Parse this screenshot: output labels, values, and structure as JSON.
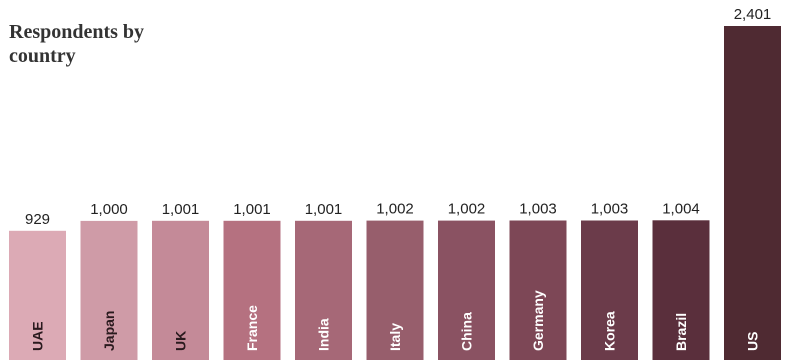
{
  "chart_data": {
    "type": "bar",
    "title": "Respondents by country",
    "categories": [
      "UAE",
      "Japan",
      "UK",
      "France",
      "India",
      "Italy",
      "China",
      "Germany",
      "Korea",
      "Brazil",
      "US"
    ],
    "values": [
      929,
      1000,
      1001,
      1001,
      1001,
      1002,
      1002,
      1003,
      1003,
      1004,
      2401
    ],
    "value_labels": [
      "929",
      "1,000",
      "1,001",
      "1,001",
      "1,001",
      "1,002",
      "1,002",
      "1,003",
      "1,003",
      "1,004",
      "2,401"
    ],
    "ylim": [
      0,
      2401
    ],
    "grid": false,
    "bar_colors": [
      "#dcaab5",
      "#cf9ba7",
      "#c48a98",
      "#b57180",
      "#a66877",
      "#975e6c",
      "#8a5262",
      "#7d4756",
      "#6b3b4a",
      "#5a2f3c",
      "#4f2a32"
    ],
    "label_colors": [
      "#2a1a1e",
      "#2a1a1e",
      "#2a1a1e",
      "#ffffff",
      "#ffffff",
      "#ffffff",
      "#ffffff",
      "#ffffff",
      "#ffffff",
      "#ffffff",
      "#ffffff"
    ]
  }
}
